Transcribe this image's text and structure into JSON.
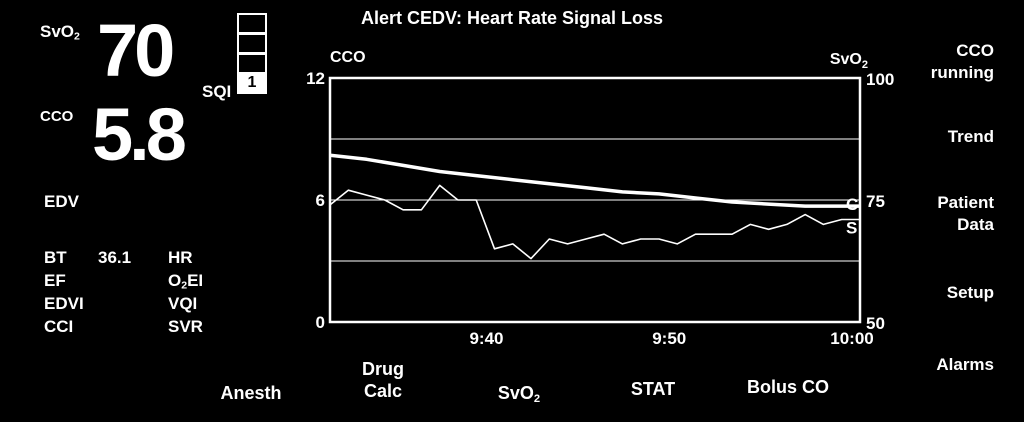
{
  "alert": {
    "text": "Alert CEDV: Heart Rate Signal Loss"
  },
  "main_params": {
    "svo2": {
      "label": "SvO",
      "label_sub": "2",
      "value": "70"
    },
    "cco": {
      "label": "CCO",
      "value": "5.8"
    },
    "sqi": {
      "label": "SQI",
      "value": "1"
    }
  },
  "edv": {
    "label": "EDV"
  },
  "secondary": {
    "left": [
      {
        "label": "BT",
        "value": "36.1"
      },
      {
        "label": "EF",
        "value": ""
      },
      {
        "label": "EDVI",
        "value": ""
      },
      {
        "label": "CCI",
        "value": ""
      }
    ],
    "right": [
      {
        "label": "HR"
      },
      {
        "label": "O",
        "sub": "2",
        "suffix": "EI"
      },
      {
        "label": "VQI"
      },
      {
        "label": "SVR"
      }
    ]
  },
  "softkeys_right": [
    {
      "line1": "CCO",
      "line2": "running"
    },
    {
      "line1": "Trend",
      "line2": ""
    },
    {
      "line1": "Patient",
      "line2": "Data"
    },
    {
      "line1": "Setup",
      "line2": ""
    },
    {
      "line1": "Alarms",
      "line2": ""
    }
  ],
  "softkeys_bottom": [
    {
      "line1": "",
      "line2": "Anesth"
    },
    {
      "line1": "Drug",
      "line2": "Calc"
    },
    {
      "line1": "",
      "line2": "SvO",
      "sub": "2"
    },
    {
      "line1": "",
      "line2": "STAT"
    },
    {
      "line1": "",
      "line2": "Bolus CO"
    }
  ],
  "chart_data": {
    "type": "line",
    "left_axis": {
      "label": "CCO",
      "ticks": [
        "0",
        "6",
        "12"
      ],
      "min": 0,
      "max": 12
    },
    "right_axis": {
      "label": "SvO",
      "label_sub": "2",
      "ticks": [
        "50",
        "75",
        "100"
      ],
      "min": 50,
      "max": 100
    },
    "x_axis": {
      "ticks": [
        "9:40",
        "9:50",
        "10:00"
      ],
      "tick_minutes": [
        40,
        50,
        60
      ],
      "min_minutes": 31,
      "max_minutes": 60
    },
    "grid": true,
    "series": [
      {
        "name": "C",
        "axis": "left",
        "x": [
          31,
          33,
          35,
          37,
          39,
          41,
          43,
          45,
          47,
          49,
          51,
          53,
          55,
          57,
          59,
          60
        ],
        "y": [
          8.2,
          8.0,
          7.7,
          7.4,
          7.2,
          7.0,
          6.8,
          6.6,
          6.4,
          6.3,
          6.1,
          5.9,
          5.8,
          5.7,
          5.7,
          5.7
        ]
      },
      {
        "name": "S",
        "axis": "right",
        "x": [
          31,
          32,
          33,
          34,
          35,
          36,
          37,
          38,
          39,
          40,
          41,
          42,
          43,
          44,
          45,
          46,
          47,
          48,
          49,
          50,
          51,
          52,
          53,
          54,
          55,
          56,
          57,
          58,
          59,
          60
        ],
        "y": [
          74,
          77,
          76,
          75,
          73,
          73,
          78,
          75,
          75,
          65,
          66,
          63,
          67,
          66,
          67,
          68,
          66,
          67,
          67,
          66,
          68,
          68,
          68,
          70,
          69,
          70,
          72,
          70,
          71,
          71
        ]
      }
    ]
  }
}
